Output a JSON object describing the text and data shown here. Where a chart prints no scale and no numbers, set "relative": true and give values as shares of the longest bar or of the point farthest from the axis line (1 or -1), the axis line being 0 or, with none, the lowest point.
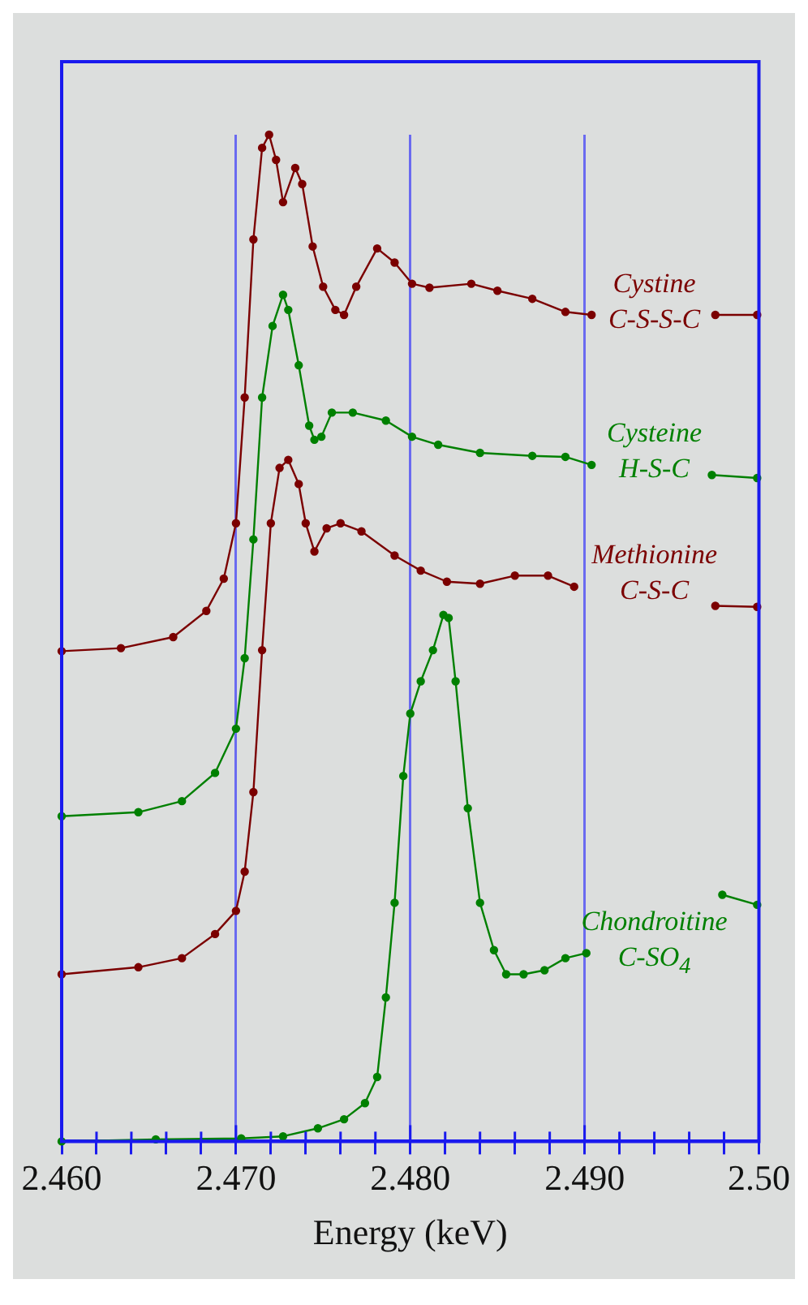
{
  "chart_data": {
    "type": "line",
    "xlabel": "Energy (keV)",
    "relative": true,
    "grid": "x",
    "legend": false,
    "marker": "circle",
    "line_style": "solid",
    "xlim": [
      2.46,
      2.5
    ],
    "xticks": [
      {
        "value": 2.46,
        "label": "2.460"
      },
      {
        "value": 2.462,
        "label": null
      },
      {
        "value": 2.464,
        "label": null
      },
      {
        "value": 2.466,
        "label": null
      },
      {
        "value": 2.468,
        "label": null
      },
      {
        "value": 2.47,
        "label": "2.470"
      },
      {
        "value": 2.472,
        "label": null
      },
      {
        "value": 2.474,
        "label": null
      },
      {
        "value": 2.476,
        "label": null
      },
      {
        "value": 2.478,
        "label": null
      },
      {
        "value": 2.48,
        "label": "2.480"
      },
      {
        "value": 2.482,
        "label": null
      },
      {
        "value": 2.484,
        "label": null
      },
      {
        "value": 2.486,
        "label": null
      },
      {
        "value": 2.488,
        "label": null
      },
      {
        "value": 2.49,
        "label": "2.490"
      },
      {
        "value": 2.492,
        "label": null
      },
      {
        "value": 2.494,
        "label": null
      },
      {
        "value": 2.496,
        "label": null
      },
      {
        "value": 2.498,
        "label": null
      },
      {
        "value": 2.5,
        "label": "2.50"
      }
    ],
    "series": [
      {
        "name": "Cystine\nC-S-S-C",
        "color": "#7b0000",
        "x": [
          2.46,
          2.4634,
          2.4664,
          2.4683,
          2.4693,
          2.47,
          2.4705,
          2.471,
          2.4715,
          2.4719,
          2.4723,
          2.4727,
          2.4734,
          2.4738,
          2.4744,
          2.475,
          2.4757,
          2.4762,
          2.4769,
          2.4781,
          2.4791,
          2.4801,
          2.4811,
          2.4835,
          2.485,
          2.487,
          2.4889,
          2.4904,
          2.494,
          2.4975,
          2.4999
        ],
        "values": [
          0.487,
          0.49,
          0.501,
          0.527,
          0.559,
          0.614,
          0.739,
          0.896,
          0.987,
          1,
          0.975,
          0.933,
          0.967,
          0.951,
          0.889,
          0.849,
          0.826,
          0.821,
          0.849,
          0.887,
          0.873,
          0.852,
          0.848,
          0.852,
          0.845,
          0.837,
          0.824,
          0.821,
          null,
          0.821,
          0.821
        ]
      },
      {
        "name": "Cysteine\nH-S-C",
        "color": "#008000",
        "x": [
          2.46,
          2.4644,
          2.4669,
          2.4688,
          2.47,
          2.4705,
          2.471,
          2.4715,
          2.4721,
          2.4727,
          2.473,
          2.4736,
          2.4742,
          2.4745,
          2.4749,
          2.4755,
          2.4767,
          2.4786,
          2.4801,
          2.4816,
          2.484,
          2.487,
          2.4889,
          2.4904,
          2.494,
          2.4973,
          2.4999
        ],
        "values": [
          0.323,
          0.327,
          0.338,
          0.366,
          0.41,
          0.48,
          0.598,
          0.739,
          0.81,
          0.841,
          0.826,
          0.771,
          0.711,
          0.697,
          0.7,
          0.724,
          0.724,
          0.716,
          0.7,
          0.692,
          0.684,
          0.681,
          0.68,
          0.672,
          null,
          0.662,
          0.659
        ]
      },
      {
        "name": "Methionine\nC-S-C",
        "color": "#7b0000",
        "x": [
          2.46,
          2.4644,
          2.4669,
          2.4688,
          2.47,
          2.4705,
          2.471,
          2.4715,
          2.472,
          2.4725,
          2.473,
          2.4736,
          2.474,
          2.4745,
          2.4752,
          2.476,
          2.4772,
          2.4791,
          2.4806,
          2.4821,
          2.484,
          2.486,
          2.4879,
          2.4894,
          2.494,
          2.4975,
          2.4999
        ],
        "values": [
          0.166,
          0.173,
          0.182,
          0.206,
          0.229,
          0.268,
          0.347,
          0.488,
          0.614,
          0.669,
          0.677,
          0.653,
          0.614,
          0.586,
          0.609,
          0.614,
          0.606,
          0.582,
          0.567,
          0.556,
          0.554,
          0.562,
          0.562,
          0.551,
          null,
          0.532,
          0.531
        ]
      },
      {
        "name": "Chondroitine\nC-SO$_{4}$",
        "color": "#008000",
        "x": [
          2.46,
          2.4654,
          2.4703,
          2.4727,
          2.4747,
          2.4762,
          2.4774,
          2.4781,
          2.4786,
          2.4791,
          2.4796,
          2.48,
          2.4806,
          2.4813,
          2.4819,
          2.4822,
          2.4826,
          2.4833,
          2.484,
          2.4848,
          2.4855,
          2.4865,
          2.4877,
          2.4889,
          2.4901,
          2.494,
          2.4979,
          2.4999
        ],
        "values": [
          0,
          0.002,
          0.003,
          0.005,
          0.013,
          0.022,
          0.038,
          0.064,
          0.143,
          0.237,
          0.363,
          0.425,
          0.457,
          0.488,
          0.523,
          0.52,
          0.457,
          0.331,
          0.237,
          0.19,
          0.166,
          0.166,
          0.17,
          0.182,
          0.187,
          null,
          0.245,
          0.235
        ]
      }
    ]
  }
}
